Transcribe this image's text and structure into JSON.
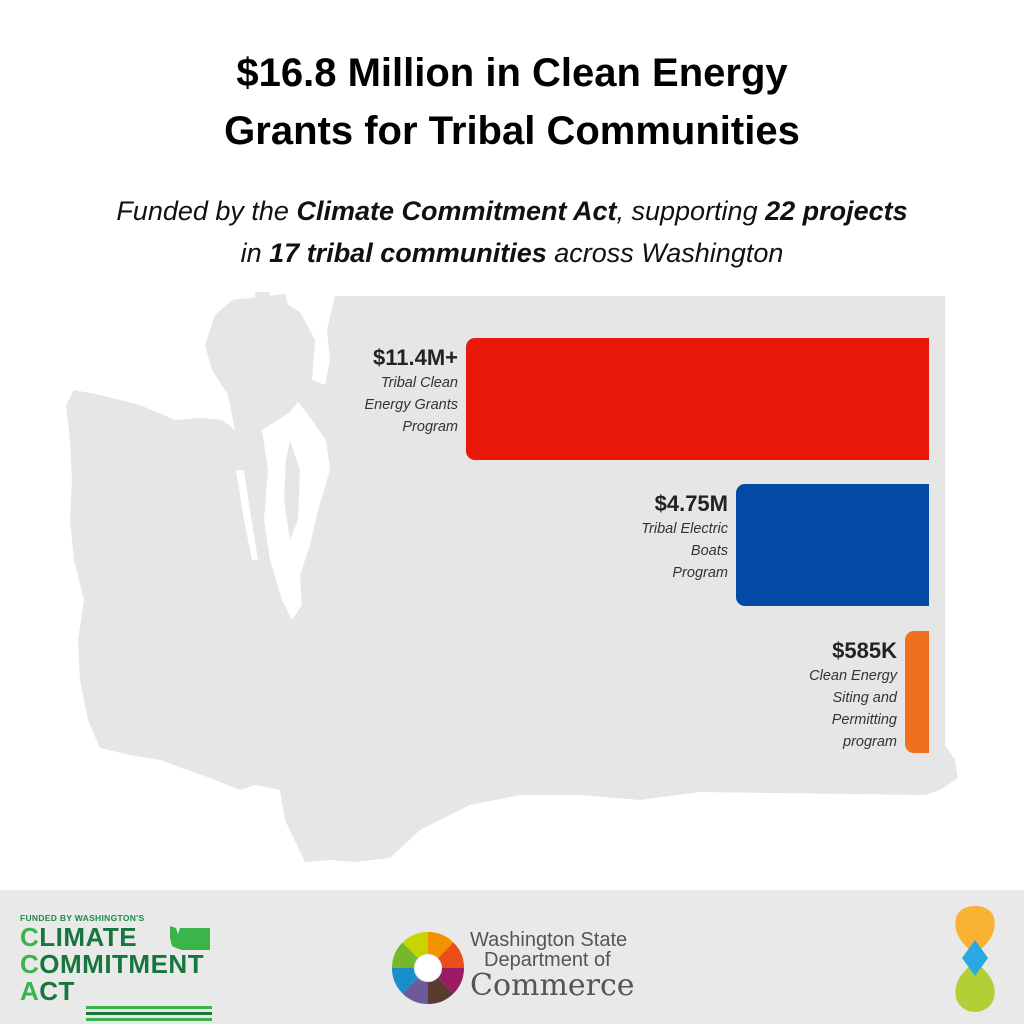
{
  "title": {
    "line1": "$16.8 Million in Clean Energy",
    "line2": "Grants for Tribal Communities"
  },
  "subtitle": {
    "p1": "Funded by the ",
    "b1": "Climate Commitment Act",
    "p2": ", supporting ",
    "b2": "22 projects",
    "p3": " in ",
    "b3": "17 tribal communities",
    "p4": " across Washington"
  },
  "chart_data": {
    "type": "bar",
    "orientation": "horizontal",
    "bars": [
      {
        "value_label": "$11.4M+",
        "value_musd": 11.4,
        "desc": [
          "Tribal Clean",
          "Energy Grants",
          "Program"
        ],
        "color": "#e8190a"
      },
      {
        "value_label": "$4.75M",
        "value_musd": 4.75,
        "desc": [
          "Tribal Electric",
          "Boats",
          "Program"
        ],
        "color": "#0449a4"
      },
      {
        "value_label": "$585K",
        "value_musd": 0.585,
        "desc": [
          "Clean Energy",
          "Siting and",
          "Permitting",
          "program"
        ],
        "color": "#f07020"
      }
    ],
    "background_map": "Washington State silhouette",
    "map_color": "#e6e6e6"
  },
  "footer": {
    "cca": {
      "small": "FUNDED BY WASHINGTON'S",
      "w1a": "C",
      "w1b": "LIMATE",
      "w2a": "C",
      "w2b": "OMMITMENT",
      "w3a": "A",
      "w3b": "CT"
    },
    "commerce": {
      "line1": "Washington State",
      "line2": "Department of",
      "line3": "Commerce"
    },
    "colors": {
      "cca_dark": "#17753e",
      "cca_light": "#3bb54a",
      "brand_yellow": "#f9b234",
      "brand_blue": "#29a9e1",
      "brand_green": "#b2cf36"
    }
  }
}
